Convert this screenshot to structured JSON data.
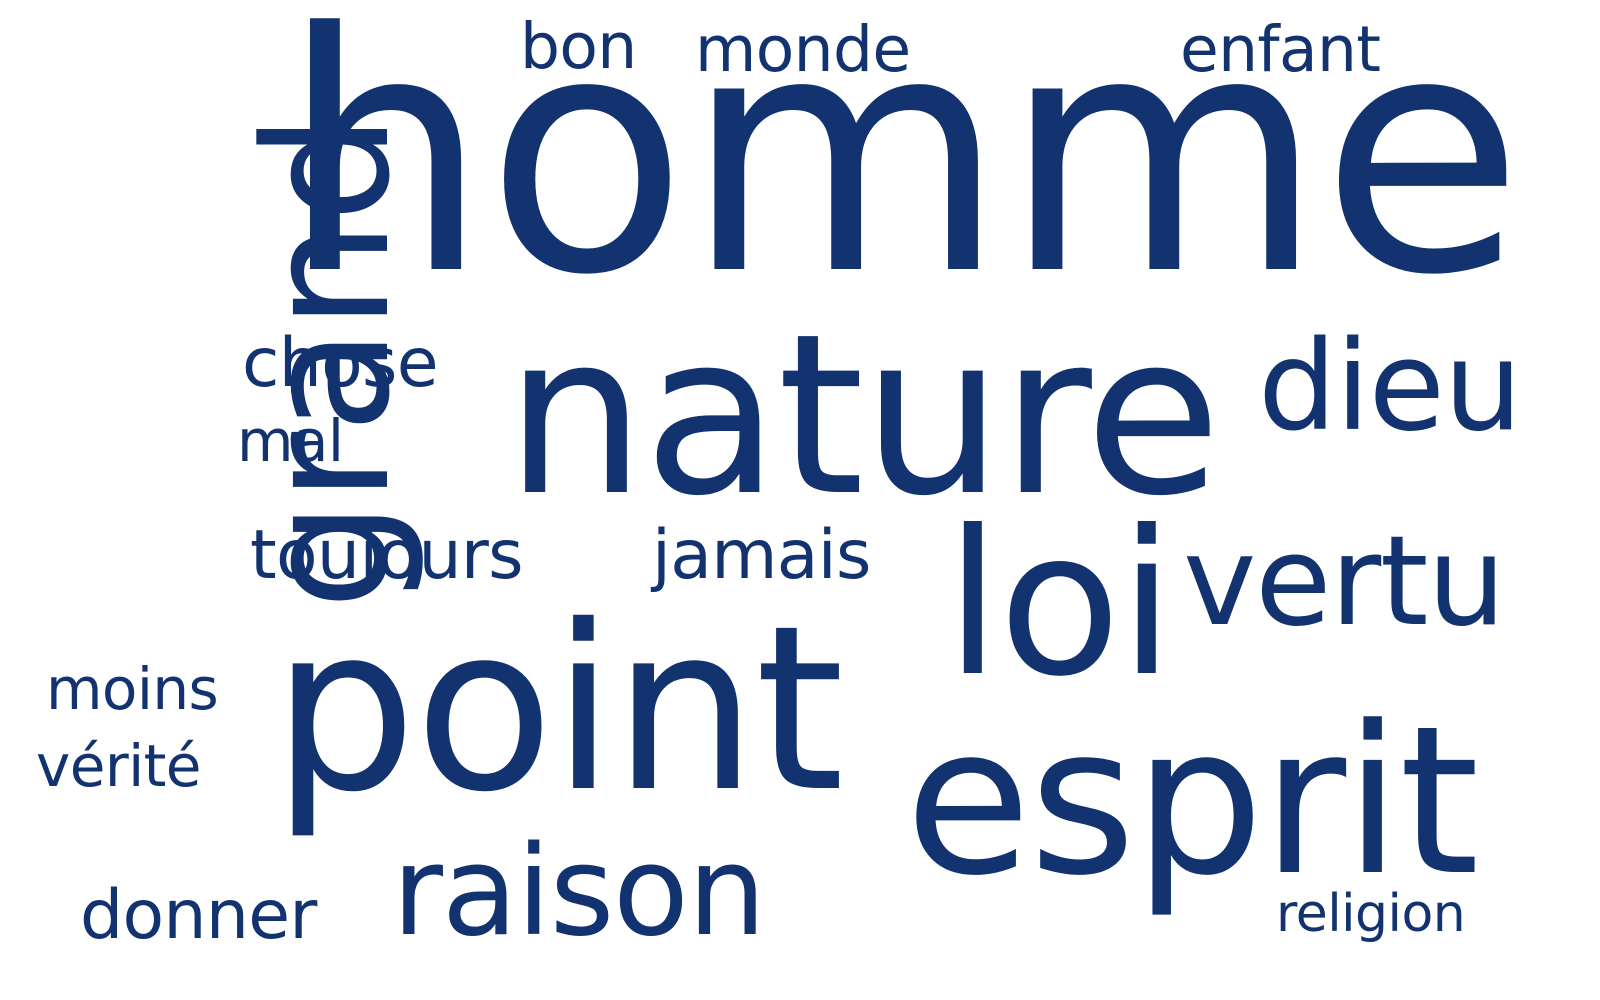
{
  "colors": {
    "text": "#12336f",
    "background": "#ffffff"
  },
  "words": {
    "homme": "homme",
    "nature": "nature",
    "point": "point",
    "esprit": "esprit",
    "loi": "loi",
    "grand": "grand",
    "raison": "raison",
    "vertu": "vertu",
    "dieu": "dieu",
    "toujours": "toujours",
    "chose": "chose",
    "jamais": "jamais",
    "donner": "donner",
    "monde": "monde",
    "enfant": "enfant",
    "bon": "bon",
    "moins": "moins",
    "verite": "vérité",
    "mal": "mal",
    "religion": "religion"
  }
}
